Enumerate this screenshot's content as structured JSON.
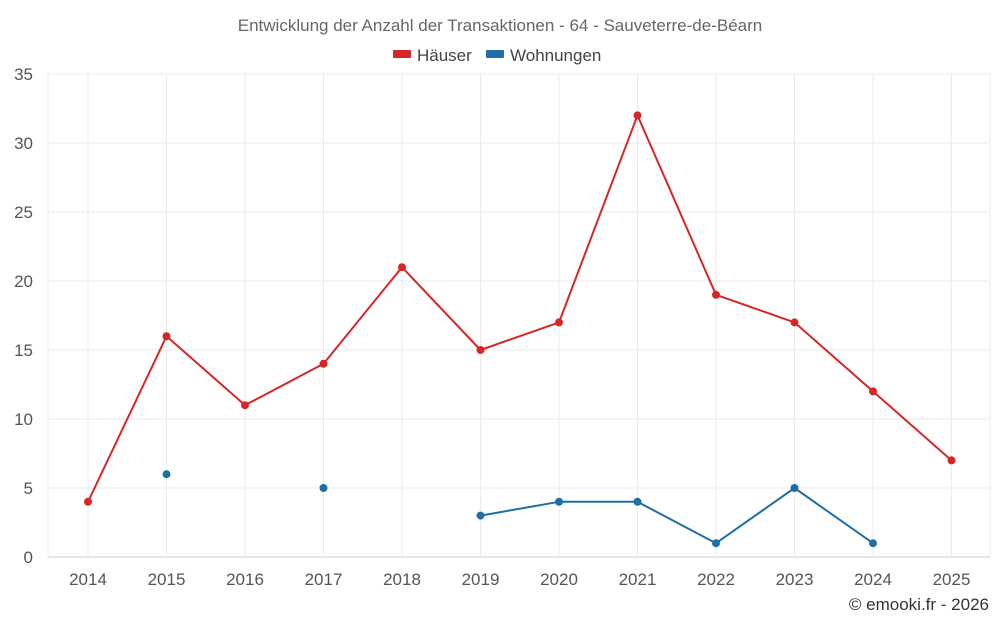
{
  "chart_data": {
    "type": "line",
    "title": "Entwicklung der Anzahl der Transaktionen - 64 - Sauveterre-de-Béarn",
    "categories": [
      "2014",
      "2015",
      "2016",
      "2017",
      "2018",
      "2019",
      "2020",
      "2021",
      "2022",
      "2023",
      "2024",
      "2025"
    ],
    "ylim": [
      0,
      35
    ],
    "yticks": [
      0,
      5,
      10,
      15,
      20,
      25,
      30,
      35
    ],
    "grid": true,
    "legend_position": "top-center",
    "series": [
      {
        "name": "Häuser",
        "color": "#d62728",
        "values": [
          4,
          16,
          11,
          14,
          21,
          15,
          17,
          32,
          19,
          17,
          12,
          7
        ]
      },
      {
        "name": "Wohnungen",
        "color": "#1f6fa5",
        "values": [
          null,
          6,
          null,
          5,
          null,
          3,
          4,
          4,
          1,
          5,
          1,
          null
        ]
      }
    ]
  },
  "credit": "© emooki.fr - 2026"
}
